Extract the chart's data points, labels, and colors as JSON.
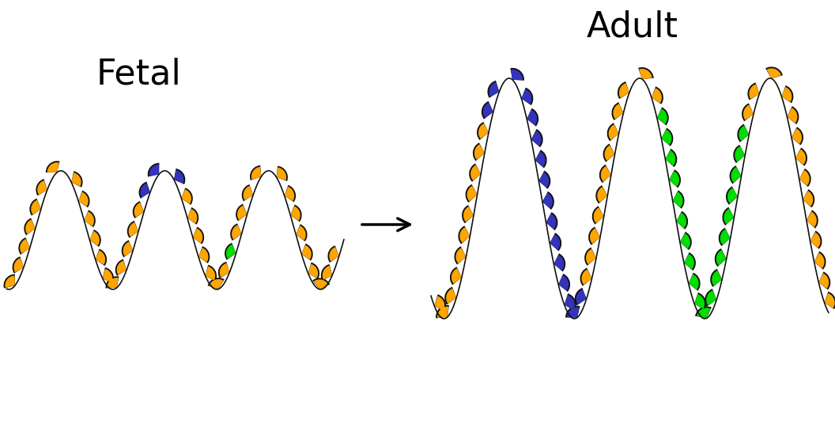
{
  "bg_color": "#ffffff",
  "orange_color": "#FFA500",
  "blue_color": "#3333BB",
  "green_color": "#00DD00",
  "black_color": "#111111",
  "fetal_label": "Fetal",
  "adult_label": "Adult",
  "outline_color": "#111111"
}
